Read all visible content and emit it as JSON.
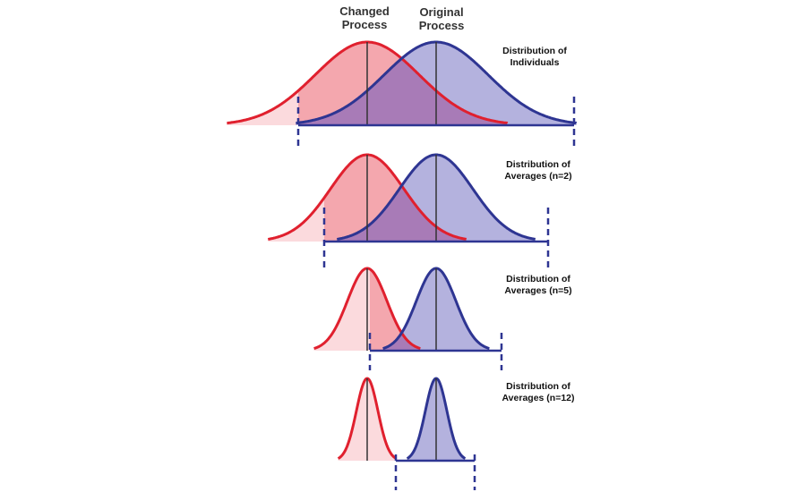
{
  "header": {
    "changed": "Changed Process",
    "original": "Original Process"
  },
  "rows": [
    {
      "label": "Distribution of Individuals"
    },
    {
      "label": "Distribution of Averages (n=2)"
    },
    {
      "label": "Distribution of Averages (n=5)"
    },
    {
      "label": "Distribution of Averages (n=12)"
    }
  ]
}
